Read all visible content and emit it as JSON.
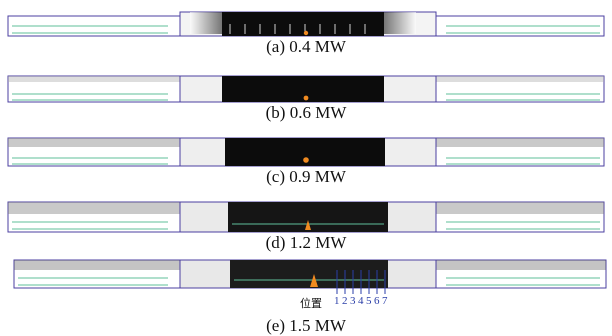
{
  "panels": [
    {
      "id": "a",
      "caption": "(a) 0.4 MW"
    },
    {
      "id": "b",
      "caption": "(b) 0.6 MW"
    },
    {
      "id": "c",
      "caption": "(c) 0.9 MW"
    },
    {
      "id": "d",
      "caption": "(d) 1.2 MW"
    },
    {
      "id": "e",
      "caption": "(e) 1.5 MW"
    }
  ],
  "positions": {
    "label": "位置",
    "numbers": [
      "1",
      "2",
      "3",
      "4",
      "5",
      "6",
      "7"
    ]
  },
  "colors": {
    "smoke_dark": "#0c0c0c",
    "tunnel_outline": "#4b3fa0",
    "vehicle_green": "#5fbf9a",
    "fire_orange": "#f08a20",
    "marker_blue": "#2a3ea8"
  }
}
